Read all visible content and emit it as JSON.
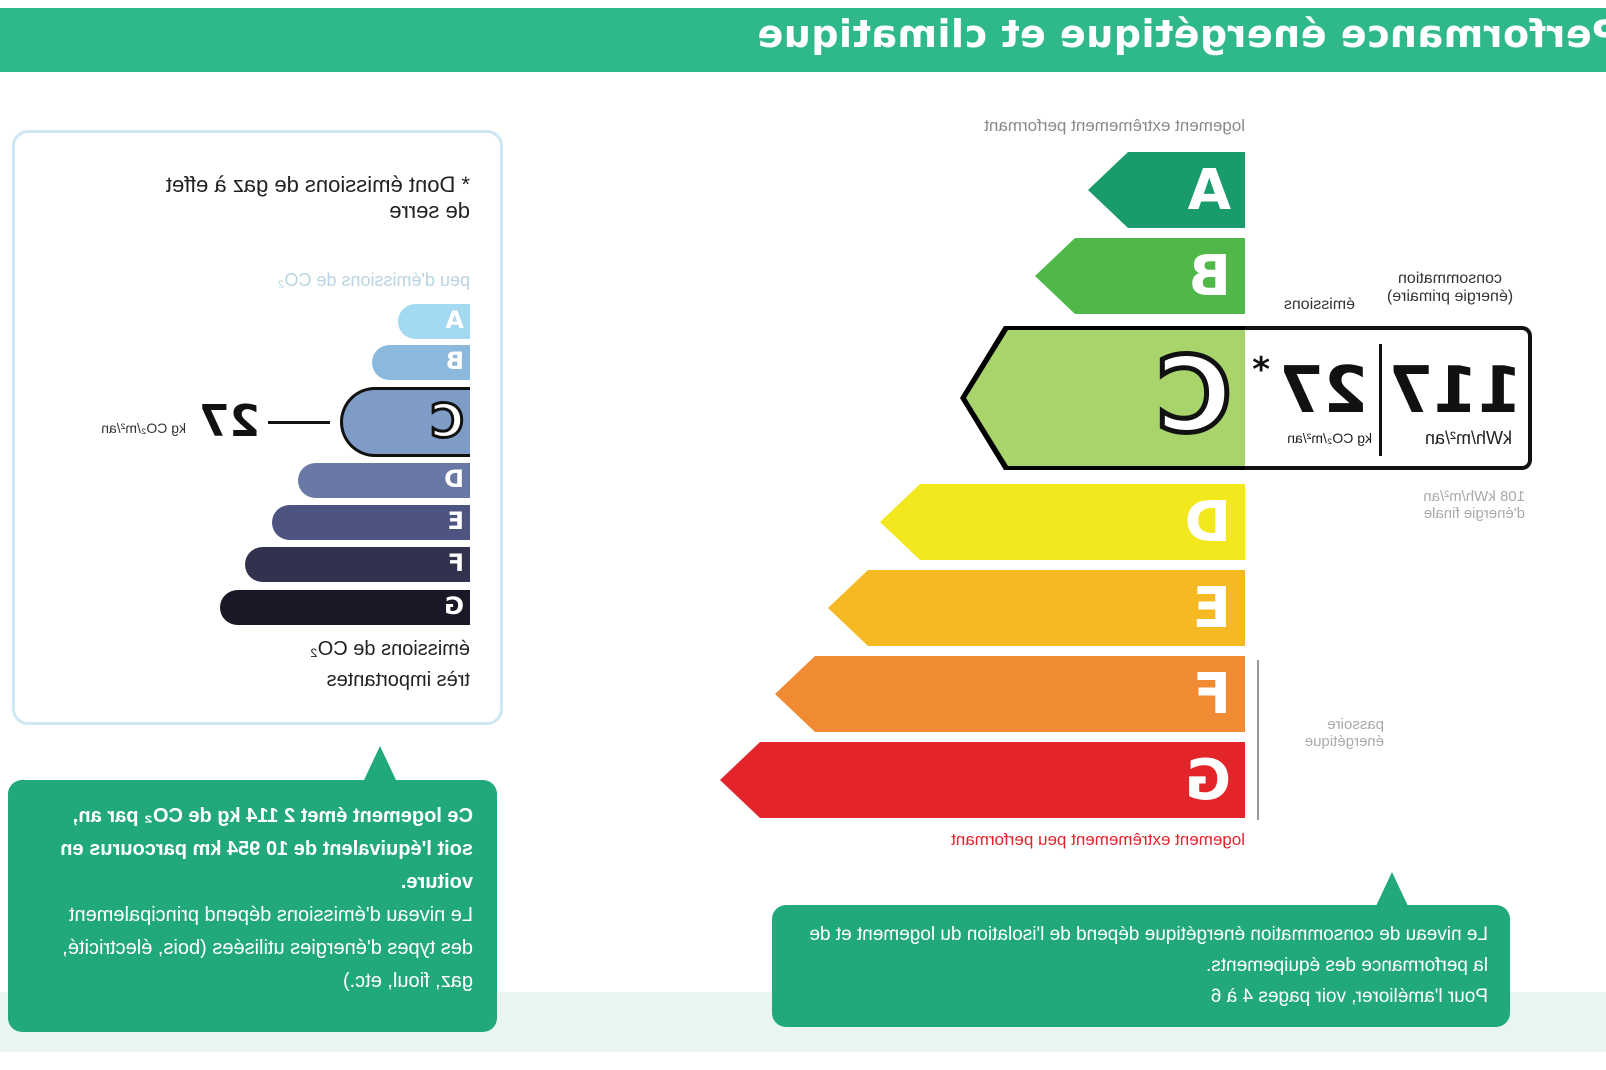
{
  "header": {
    "title": "Performance énergétique et climatique"
  },
  "energy": {
    "top_label": "logement extrêmement performant",
    "bottom_label": "logement extrêmement peu performant",
    "classes": [
      "A",
      "B",
      "C",
      "D",
      "E",
      "F",
      "G"
    ],
    "colors": {
      "A": "#1a9b6b",
      "B": "#4fb848",
      "C": "#a9d46c",
      "D": "#f2e81d",
      "E": "#f5b923",
      "F": "#f08b34",
      "G": "#e3242b"
    },
    "current_class": "C",
    "consumption_label": "consommation (énergie primaire)",
    "consumption_value": "117",
    "consumption_unit": "kWh/m²/an",
    "emissions_label": "émissions",
    "emissions_value": "27",
    "emissions_asterisk": "*",
    "emissions_unit": "kg CO₂/m²/an",
    "final_energy": "108 kWh/m²/an",
    "final_energy_label": "d'énergie finale",
    "passoire_label": "passoire énergétique"
  },
  "ges": {
    "note": "* Dont émissions de gaz à effet de serre",
    "top_label": "peu d'émissions de CO₂",
    "bottom_label": "émissions de CO₂ très importantes",
    "classes": [
      "A",
      "B",
      "C",
      "D",
      "E",
      "F",
      "G"
    ],
    "colors": {
      "A": "#a3d9f1",
      "B": "#8bb9dd",
      "C": "#7f9cc6",
      "D": "#6a78a5",
      "E": "#4d5482",
      "F": "#32324e",
      "G": "#1b1727"
    },
    "current_class": "C",
    "value": "27",
    "unit": "kg CO₂/m²/an"
  },
  "callout_ges": {
    "bold": "Ce logement émet 2 114 kg de CO₂ par an, soit l'équivalent de 10 954 km parcourus en voiture.",
    "text": "Le niveau d'émissions dépend principalement des types d'énergies utilisées (bois, électricité, gaz, fioul, etc.)"
  },
  "callout_energy": {
    "text": "Le niveau de consommation énergétique dépend de l'isolation du logement et de la performance des équipements.",
    "text2": "Pour l'améliorer, voir pages 4 à 6"
  }
}
